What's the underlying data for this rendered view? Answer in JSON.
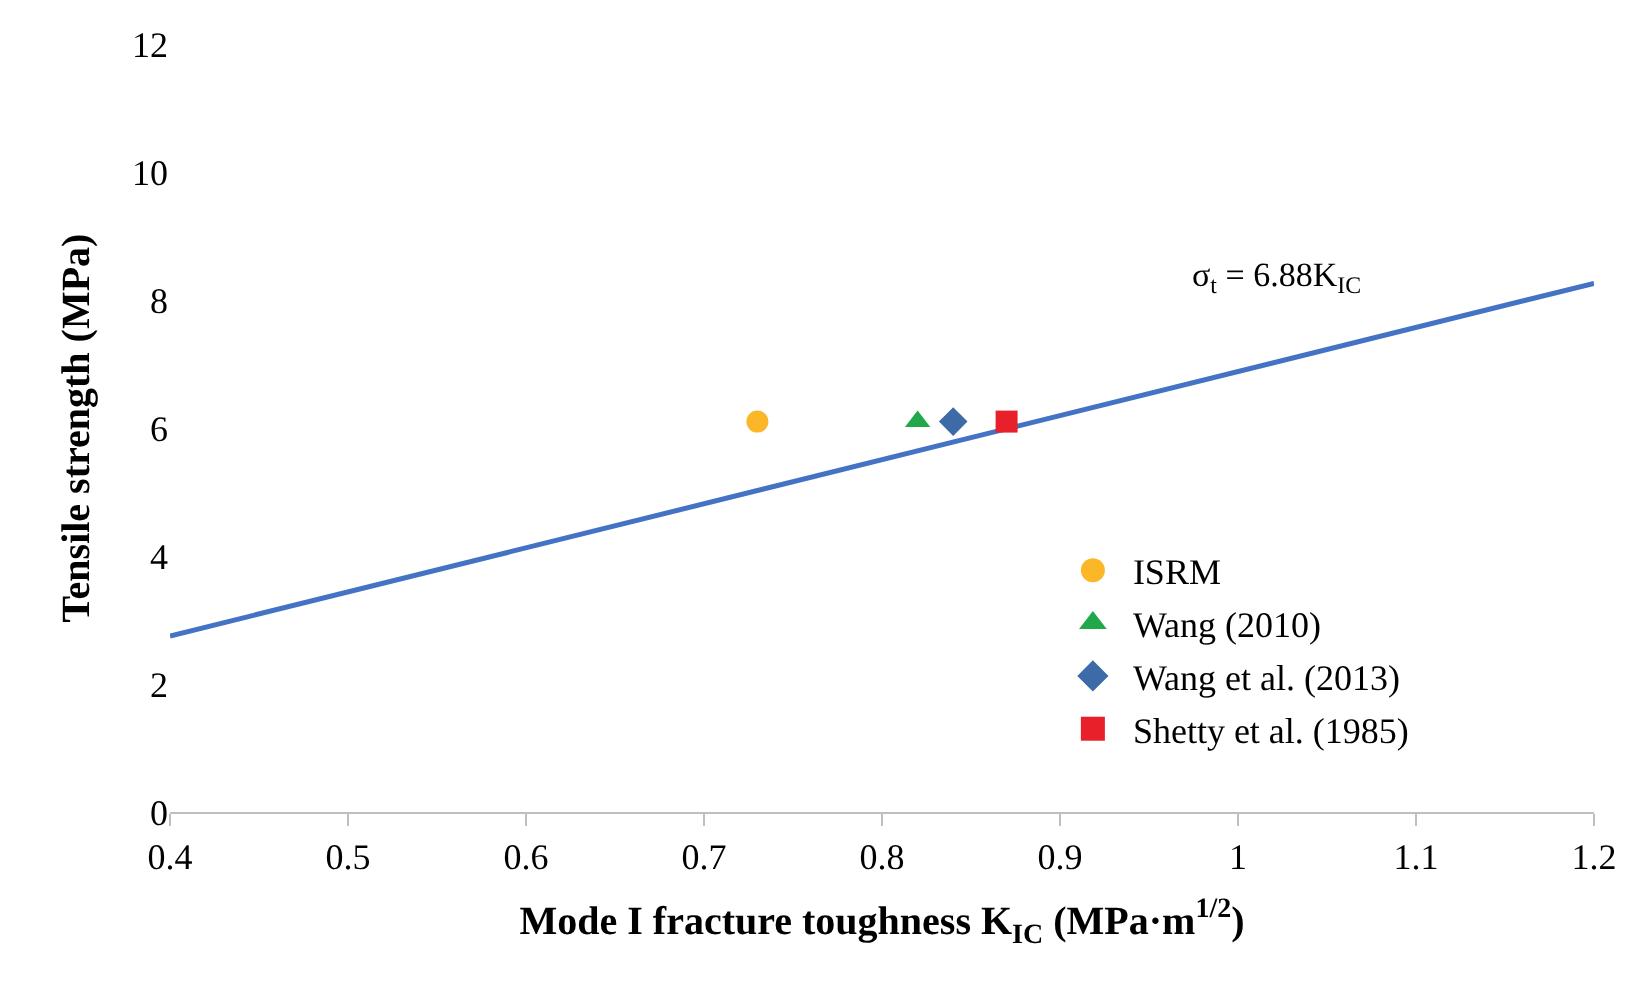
{
  "chart_data": {
    "type": "scatter",
    "xlabel": "Mode I fracture toughness K$_{IC}$ (MPa·m$^{1/2}$)",
    "ylabel": "Tensile strength (MPa)",
    "xlim": [
      0.4,
      1.2
    ],
    "xticks": [
      0.4,
      0.5,
      0.6,
      0.7,
      0.8,
      0.9,
      1,
      1.1,
      1.2
    ],
    "ylim": [
      0,
      12
    ],
    "yticks": [
      0,
      2,
      4,
      6,
      8,
      10,
      12
    ],
    "legend": "bottom right",
    "series": [
      {
        "type": "line",
        "color": "#4472c4",
        "x": [
          0.4,
          1.2
        ],
        "values": [
          2.75,
          8.26
        ],
        "marker": "none",
        "line_style": "solid"
      },
      {
        "name": "ISRM",
        "color": "#fbb727",
        "x": [
          0.73
        ],
        "values": [
          6.1
        ],
        "marker": "circle"
      },
      {
        "name": "Wang (2010)",
        "color": "#21a84a",
        "x": [
          0.82
        ],
        "values": [
          6.1
        ],
        "marker": "triangle"
      },
      {
        "name": "Wang et al. (2013)",
        "color": "#3d6ba8",
        "x": [
          0.84
        ],
        "values": [
          6.1
        ],
        "marker": "diamond"
      },
      {
        "name": "Shetty et al. (1985)",
        "color": "#e8202a",
        "x": [
          0.87
        ],
        "values": [
          6.1
        ],
        "marker": "square"
      }
    ],
    "annotations": [
      "σ$_{t}$ = 6.88K$_{IC}$"
    ]
  }
}
